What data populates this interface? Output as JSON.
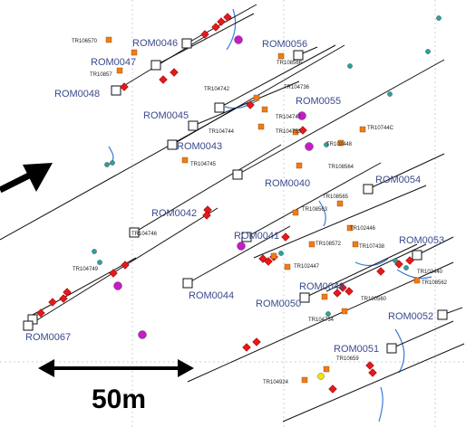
{
  "colors": {
    "line": "#111111",
    "hole_square": "#ffffff",
    "marker_red": "#e31a1c",
    "marker_orange": "#f07c16",
    "marker_magenta": "#c71ac9",
    "marker_teal": "#2aa39a",
    "marker_yellow": "#f2e600",
    "stream_blue": "#3b7bd8",
    "grid": "#c8d2de",
    "label": "#3b4a8c"
  },
  "map": {
    "rom_labels": [
      "ROM0046",
      "ROM0047",
      "ROM0048",
      "ROM0056",
      "ROM0045",
      "ROM0055",
      "ROM0043",
      "ROM0040",
      "ROM0054",
      "ROM0042",
      "ROM0041",
      "ROM0053",
      "ROM0049",
      "ROM0044",
      "ROM0050",
      "ROM0052",
      "ROM0067",
      "ROM0051"
    ],
    "tr_labels": [
      "TR106570",
      "TR10857",
      "TR108566",
      "TR104742",
      "TR104736",
      "TR104747",
      "TR104744",
      "TR104753",
      "TR10744C",
      "TR102448",
      "TR104745",
      "TR108564",
      "TR108565",
      "TR108563",
      "TR104746",
      "TR102446",
      "TR108572",
      "TR107438",
      "TR102447",
      "TR104749",
      "TR102440",
      "TR108562",
      "TR100560",
      "TR104754",
      "TR10659",
      "TR104924"
    ],
    "north_arrow_icon": "direction-arrow-icon",
    "scale_bar": {
      "label": "50m",
      "icon": "double-arrow-icon"
    }
  }
}
